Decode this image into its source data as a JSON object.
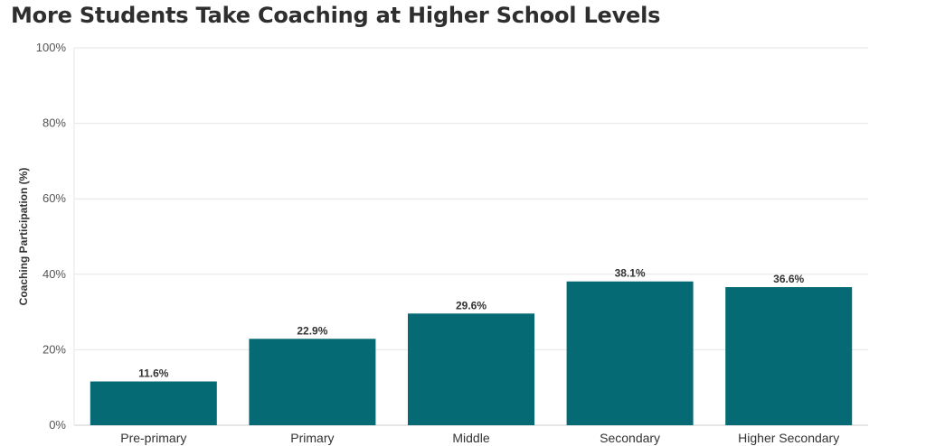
{
  "chart_data": {
    "type": "bar",
    "title": "More Students Take Coaching at Higher School Levels",
    "xlabel": "",
    "ylabel": "Coaching Participation (%)",
    "categories": [
      "Pre-primary",
      "Primary",
      "Middle",
      "Secondary",
      "Higher Secondary"
    ],
    "values": [
      11.6,
      22.9,
      29.6,
      38.1,
      36.6
    ],
    "data_labels": [
      "11.6%",
      "22.9%",
      "29.6%",
      "38.1%",
      "36.6%"
    ],
    "ylim": [
      0,
      100
    ],
    "yticks": [
      0,
      20,
      40,
      60,
      80,
      100
    ],
    "ytick_labels": [
      "0%",
      "20%",
      "40%",
      "60%",
      "80%",
      "100%"
    ],
    "grid": true,
    "legend": "none",
    "colors": {
      "bar": "#066a74",
      "grid": "#e6e6e6",
      "axis": "#cccccc"
    }
  }
}
